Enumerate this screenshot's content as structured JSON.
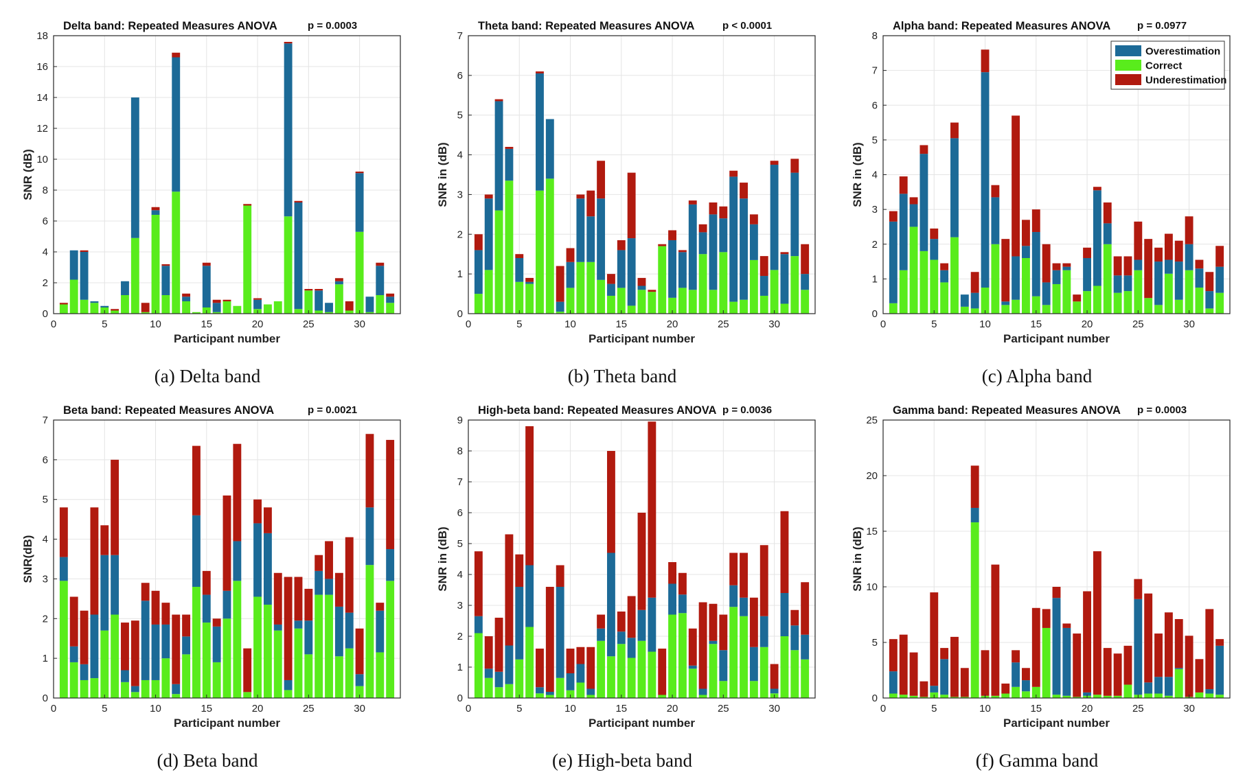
{
  "colors": {
    "over": "#1c6a97",
    "correct": "#59ec1c",
    "under": "#b11a0f",
    "grid": "#e4e4e4",
    "axis": "#262626"
  },
  "legend": {
    "entries": [
      "Overestimation",
      "Correct",
      "Underestimation"
    ]
  },
  "chart_data": [
    {
      "type": "bar",
      "stacked": true,
      "title": "Delta band: Repeated Measures ANOVA",
      "p_label": "p = 0.0003",
      "xlabel": "Participant number",
      "ylabel": "SNR (dB)",
      "xlim": [
        0,
        34
      ],
      "ylim": [
        0,
        18
      ],
      "yticks": [
        0,
        2,
        4,
        6,
        8,
        10,
        12,
        14,
        16,
        18
      ],
      "xticks": [
        0,
        5,
        10,
        15,
        20,
        25,
        30
      ],
      "caption": "(a) Delta band",
      "x": [
        1,
        2,
        3,
        4,
        5,
        6,
        7,
        8,
        9,
        10,
        11,
        12,
        13,
        14,
        15,
        16,
        17,
        18,
        19,
        20,
        21,
        22,
        23,
        24,
        25,
        26,
        27,
        28,
        29,
        30,
        31,
        32,
        33
      ],
      "series": [
        {
          "name": "Correct",
          "values": [
            0.6,
            2.2,
            0.9,
            0.7,
            0.4,
            0.2,
            1.2,
            4.9,
            0.1,
            6.4,
            1.2,
            7.9,
            0.8,
            0.1,
            0.4,
            0.1,
            0.8,
            0.5,
            7.0,
            0.3,
            0.6,
            0.8,
            6.3,
            0.3,
            1.5,
            0.2,
            0.1,
            1.9,
            0.2,
            5.3,
            0.1,
            1.2,
            0.7
          ]
        },
        {
          "name": "Overestimation",
          "values": [
            0.0,
            1.9,
            3.1,
            0.1,
            0.1,
            0.0,
            0.9,
            9.1,
            0.0,
            0.3,
            1.9,
            8.7,
            0.3,
            0.0,
            2.7,
            0.6,
            0.0,
            0.0,
            0.0,
            0.6,
            0.0,
            0.0,
            11.2,
            6.9,
            0.0,
            1.3,
            0.6,
            0.2,
            0.0,
            3.8,
            1.0,
            1.9,
            0.4
          ]
        },
        {
          "name": "Underestimation",
          "values": [
            0.1,
            0.0,
            0.1,
            0.0,
            0.0,
            0.1,
            0.0,
            0.0,
            0.6,
            0.2,
            0.1,
            0.3,
            0.2,
            0.0,
            0.2,
            0.2,
            0.1,
            0.0,
            0.1,
            0.1,
            0.0,
            0.0,
            0.1,
            0.1,
            0.1,
            0.1,
            0.0,
            0.2,
            0.6,
            0.1,
            0.0,
            0.2,
            0.2
          ]
        }
      ]
    },
    {
      "type": "bar",
      "stacked": true,
      "title": "Theta band: Repeated Measures ANOVA",
      "p_label": "p < 0.0001",
      "xlabel": "Participant number",
      "ylabel": "SNR in (dB)",
      "xlim": [
        0,
        34
      ],
      "ylim": [
        0,
        7
      ],
      "yticks": [
        0,
        1,
        2,
        3,
        4,
        5,
        6,
        7
      ],
      "xticks": [
        0,
        5,
        10,
        15,
        20,
        25,
        30
      ],
      "caption": "(b) Theta band",
      "x": [
        1,
        2,
        3,
        4,
        5,
        6,
        7,
        8,
        9,
        10,
        11,
        12,
        13,
        14,
        15,
        16,
        17,
        18,
        19,
        20,
        21,
        22,
        23,
        24,
        25,
        26,
        27,
        28,
        29,
        30,
        31,
        32,
        33
      ],
      "series": [
        {
          "name": "Correct",
          "values": [
            0.5,
            1.1,
            2.6,
            3.35,
            0.8,
            0.75,
            3.1,
            3.4,
            0.05,
            0.65,
            1.3,
            1.3,
            0.85,
            0.45,
            0.65,
            0.2,
            0.6,
            0.55,
            1.7,
            0.4,
            0.65,
            0.6,
            1.5,
            0.6,
            1.55,
            0.3,
            0.35,
            1.35,
            0.45,
            1.1,
            0.25,
            1.45,
            0.6
          ]
        },
        {
          "name": "Overestimation",
          "values": [
            1.1,
            1.8,
            2.75,
            0.8,
            0.6,
            0.05,
            2.95,
            1.5,
            0.25,
            0.65,
            1.6,
            1.15,
            2.05,
            0.3,
            0.95,
            1.7,
            0.1,
            0.0,
            0.0,
            1.45,
            0.9,
            2.15,
            0.55,
            1.9,
            0.85,
            3.15,
            2.55,
            0.9,
            0.5,
            2.65,
            1.25,
            2.1,
            0.4
          ]
        },
        {
          "name": "Underestimation",
          "values": [
            0.4,
            0.1,
            0.05,
            0.05,
            0.1,
            0.1,
            0.05,
            0.0,
            0.9,
            0.35,
            0.1,
            0.65,
            0.95,
            0.25,
            0.25,
            1.65,
            0.2,
            0.05,
            0.05,
            0.25,
            0.05,
            0.1,
            0.2,
            0.3,
            0.3,
            0.15,
            0.4,
            0.25,
            0.5,
            0.1,
            0.05,
            0.35,
            0.75
          ]
        }
      ]
    },
    {
      "type": "bar",
      "stacked": true,
      "title": "Alpha band: Repeated Measures ANOVA",
      "p_label": "p = 0.0977",
      "xlabel": "Participant number",
      "ylabel": "SNR in (dB)",
      "xlim": [
        0,
        34
      ],
      "ylim": [
        0,
        8
      ],
      "yticks": [
        0,
        1,
        2,
        3,
        4,
        5,
        6,
        7,
        8
      ],
      "xticks": [
        0,
        5,
        10,
        15,
        20,
        25,
        30
      ],
      "caption": "(c) Alpha band",
      "legend": "top-right",
      "x": [
        1,
        2,
        3,
        4,
        5,
        6,
        7,
        8,
        9,
        10,
        11,
        12,
        13,
        14,
        15,
        16,
        17,
        18,
        19,
        20,
        21,
        22,
        23,
        24,
        25,
        26,
        27,
        28,
        29,
        30,
        31,
        32,
        33
      ],
      "series": [
        {
          "name": "Correct",
          "values": [
            0.3,
            1.25,
            2.5,
            1.8,
            1.55,
            0.9,
            2.2,
            0.2,
            0.15,
            0.75,
            2.0,
            0.25,
            0.4,
            1.6,
            0.5,
            0.25,
            0.85,
            1.25,
            0.35,
            0.65,
            0.8,
            2.0,
            0.6,
            0.65,
            1.25,
            0.45,
            0.25,
            1.15,
            0.4,
            1.25,
            0.75,
            0.15,
            0.6
          ]
        },
        {
          "name": "Overestimation",
          "values": [
            2.35,
            2.2,
            0.65,
            2.8,
            0.6,
            0.35,
            2.85,
            0.35,
            0.45,
            6.2,
            1.35,
            0.1,
            1.25,
            0.35,
            1.85,
            0.65,
            0.4,
            0.1,
            0.0,
            0.95,
            2.75,
            0.6,
            0.5,
            0.45,
            0.3,
            0.0,
            1.25,
            0.4,
            1.1,
            0.75,
            0.55,
            0.5,
            0.75
          ]
        },
        {
          "name": "Underestimation",
          "values": [
            0.3,
            0.5,
            0.2,
            0.25,
            0.3,
            0.2,
            0.45,
            0.0,
            0.6,
            0.65,
            0.35,
            1.8,
            4.05,
            0.75,
            0.65,
            1.1,
            0.2,
            0.1,
            0.2,
            0.3,
            0.1,
            0.6,
            0.55,
            0.55,
            1.1,
            1.7,
            0.4,
            0.75,
            0.6,
            0.8,
            0.25,
            0.55,
            0.6
          ]
        }
      ]
    },
    {
      "type": "bar",
      "stacked": true,
      "title": "Beta band: Repeated Measures ANOVA",
      "p_label": "p = 0.0021",
      "xlabel": "Participant number",
      "ylabel": "SNR(dB)",
      "xlim": [
        0,
        34
      ],
      "ylim": [
        0,
        7
      ],
      "yticks": [
        0,
        1,
        2,
        3,
        4,
        5,
        6,
        7
      ],
      "xticks": [
        0,
        5,
        10,
        15,
        20,
        25,
        30
      ],
      "caption": "(d) Beta band",
      "x": [
        1,
        2,
        3,
        4,
        5,
        6,
        7,
        8,
        9,
        10,
        11,
        12,
        13,
        14,
        15,
        16,
        17,
        18,
        19,
        20,
        21,
        22,
        23,
        24,
        25,
        26,
        27,
        28,
        29,
        30,
        31,
        32,
        33
      ],
      "series": [
        {
          "name": "Correct",
          "values": [
            2.95,
            0.9,
            0.45,
            0.5,
            1.7,
            2.1,
            0.4,
            0.15,
            0.45,
            0.45,
            1.0,
            0.1,
            1.1,
            2.8,
            1.9,
            0.9,
            2.0,
            2.95,
            0.15,
            2.55,
            2.35,
            1.7,
            0.2,
            1.75,
            1.1,
            2.6,
            2.6,
            1.05,
            1.25,
            0.3,
            3.35,
            1.15,
            2.95
          ]
        },
        {
          "name": "Overestimation",
          "values": [
            0.6,
            0.4,
            0.4,
            1.6,
            1.9,
            1.5,
            0.3,
            0.15,
            2.0,
            1.4,
            0.85,
            0.25,
            0.45,
            1.8,
            0.7,
            0.9,
            0.7,
            1.0,
            0.0,
            1.85,
            1.8,
            0.15,
            0.25,
            0.2,
            0.85,
            0.6,
            0.4,
            1.25,
            0.9,
            0.3,
            1.45,
            1.05,
            0.8
          ]
        },
        {
          "name": "Underestimation",
          "values": [
            1.25,
            1.25,
            1.35,
            2.7,
            0.75,
            2.4,
            1.2,
            1.65,
            0.45,
            0.85,
            0.55,
            1.75,
            0.55,
            1.75,
            0.6,
            0.2,
            2.4,
            2.45,
            1.1,
            0.6,
            0.65,
            1.3,
            2.6,
            1.1,
            0.8,
            0.4,
            0.95,
            0.85,
            1.9,
            1.15,
            1.85,
            0.2,
            2.75
          ]
        }
      ]
    },
    {
      "type": "bar",
      "stacked": true,
      "title": "High-beta band: Repeated Measures ANOVA",
      "p_label": "p = 0.0036",
      "xlabel": "Participant number",
      "ylabel": "SNR in (dB)",
      "xlim": [
        0,
        34
      ],
      "ylim": [
        0,
        9
      ],
      "yticks": [
        0,
        1,
        2,
        3,
        4,
        5,
        6,
        7,
        8,
        9
      ],
      "xticks": [
        0,
        5,
        10,
        15,
        20,
        25,
        30
      ],
      "caption": "(e) High-beta band",
      "x": [
        1,
        2,
        3,
        4,
        5,
        6,
        7,
        8,
        9,
        10,
        11,
        12,
        13,
        14,
        15,
        16,
        17,
        18,
        19,
        20,
        21,
        22,
        23,
        24,
        25,
        26,
        27,
        28,
        29,
        30,
        31,
        32,
        33
      ],
      "series": [
        {
          "name": "Correct",
          "values": [
            2.1,
            0.65,
            0.35,
            0.45,
            1.25,
            2.3,
            0.15,
            0.1,
            0.65,
            0.25,
            0.5,
            0.1,
            1.85,
            1.35,
            1.75,
            1.3,
            1.85,
            1.5,
            0.1,
            2.7,
            2.75,
            0.95,
            0.1,
            1.75,
            0.55,
            2.95,
            2.65,
            0.55,
            1.65,
            0.15,
            2.0,
            1.55,
            1.25
          ]
        },
        {
          "name": "Overestimation",
          "values": [
            0.55,
            0.3,
            0.5,
            1.25,
            2.35,
            2.0,
            0.2,
            0.1,
            2.95,
            0.55,
            0.6,
            0.2,
            0.4,
            3.35,
            0.4,
            0.65,
            1.0,
            1.75,
            0.0,
            1.0,
            0.6,
            0.1,
            0.2,
            0.1,
            1.0,
            0.7,
            0.6,
            1.1,
            1.0,
            0.15,
            1.4,
            0.8,
            0.8
          ]
        },
        {
          "name": "Underestimation",
          "values": [
            2.1,
            1.05,
            1.75,
            3.6,
            1.05,
            4.5,
            1.25,
            3.4,
            0.7,
            0.8,
            0.55,
            1.35,
            0.45,
            3.3,
            0.65,
            1.35,
            3.15,
            5.7,
            1.5,
            0.7,
            0.7,
            1.2,
            2.8,
            1.2,
            1.15,
            1.05,
            1.45,
            1.6,
            2.3,
            0.8,
            2.65,
            0.5,
            1.7
          ]
        }
      ]
    },
    {
      "type": "bar",
      "stacked": true,
      "title": "Gamma band: Repeated Measures ANOVA",
      "p_label": "p = 0.0003",
      "xlabel": "Participant number",
      "ylabel": "SNR in (dB)",
      "xlim": [
        0,
        34
      ],
      "ylim": [
        0,
        25
      ],
      "yticks": [
        0,
        5,
        10,
        15,
        20,
        25
      ],
      "xticks": [
        0,
        5,
        10,
        15,
        20,
        25,
        30
      ],
      "caption": "(f) Gamma band",
      "x": [
        1,
        2,
        3,
        4,
        5,
        6,
        7,
        8,
        9,
        10,
        11,
        12,
        13,
        14,
        15,
        16,
        17,
        18,
        19,
        20,
        21,
        22,
        23,
        24,
        25,
        26,
        27,
        28,
        29,
        30,
        31,
        32,
        33
      ],
      "series": [
        {
          "name": "Correct",
          "values": [
            0.4,
            0.3,
            0.2,
            0.1,
            0.5,
            0.3,
            0.1,
            0.1,
            15.8,
            0.2,
            0.2,
            0.4,
            1.0,
            0.6,
            1.0,
            6.3,
            0.3,
            0.2,
            0.1,
            0.2,
            0.3,
            0.2,
            0.2,
            1.2,
            0.3,
            0.4,
            0.4,
            0.2,
            2.6,
            0.1,
            0.5,
            0.4,
            0.3
          ]
        },
        {
          "name": "Overestimation",
          "values": [
            2.0,
            0.0,
            0.0,
            0.0,
            0.6,
            3.2,
            0.0,
            0.0,
            1.3,
            0.0,
            0.0,
            0.0,
            2.2,
            1.0,
            0.0,
            0.0,
            8.7,
            6.1,
            0.0,
            0.3,
            0.0,
            0.0,
            0.0,
            0.0,
            8.6,
            1.0,
            1.5,
            1.7,
            0.1,
            0.0,
            0.0,
            0.4,
            4.4
          ]
        },
        {
          "name": "Underestimation",
          "values": [
            2.9,
            5.4,
            3.9,
            1.4,
            8.4,
            1.0,
            5.4,
            2.6,
            3.8,
            4.1,
            11.8,
            0.9,
            1.1,
            1.1,
            7.1,
            1.7,
            1.0,
            0.4,
            5.7,
            9.1,
            12.9,
            4.3,
            3.8,
            3.5,
            1.8,
            8.0,
            3.9,
            5.8,
            4.4,
            5.5,
            3.0,
            7.2,
            0.6
          ]
        }
      ]
    }
  ]
}
